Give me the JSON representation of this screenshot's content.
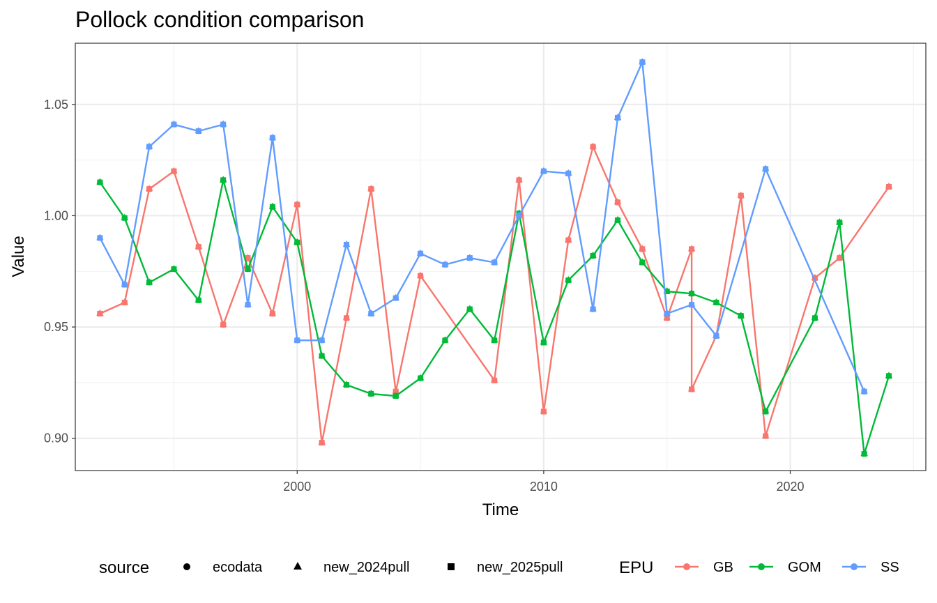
{
  "chart_data": {
    "type": "line",
    "title": "Pollock condition comparison",
    "xlabel": "Time",
    "ylabel": "Value",
    "xlim": [
      1991.0,
      2025.5
    ],
    "ylim": [
      0.8855,
      1.0775
    ],
    "x_ticks": [
      2000,
      2010,
      2020
    ],
    "y_ticks": [
      0.9,
      0.95,
      1.0,
      1.05
    ],
    "x_tick_labels": [
      "2000",
      "2010",
      "2020"
    ],
    "y_tick_labels": [
      "0.90",
      "0.95",
      "1.00",
      "1.05"
    ],
    "grid": true,
    "legend_position": "bottom",
    "shape_legend": {
      "title": "source",
      "items": [
        {
          "name": "ecodata",
          "shape": "circle"
        },
        {
          "name": "new_2024pull",
          "shape": "triangle"
        },
        {
          "name": "new_2025pull",
          "shape": "square"
        }
      ]
    },
    "series": [
      {
        "name": "GB",
        "color": "#F8766D",
        "points": [
          [
            1992,
            0.956
          ],
          [
            1993,
            0.961
          ],
          [
            1994,
            1.012
          ],
          [
            1995,
            1.02
          ],
          [
            1996,
            0.986
          ],
          [
            1997,
            0.951
          ],
          [
            1998,
            0.981
          ],
          [
            1999,
            0.956
          ],
          [
            2000,
            1.005
          ],
          [
            2001,
            0.898
          ],
          [
            2002,
            0.954
          ],
          [
            2003,
            1.012
          ],
          [
            2004,
            0.921
          ],
          [
            2005,
            0.973
          ],
          [
            2008,
            0.926
          ],
          [
            2009,
            1.016
          ],
          [
            2010,
            0.912
          ],
          [
            2011,
            0.989
          ],
          [
            2012,
            1.031
          ],
          [
            2013,
            1.006
          ],
          [
            2014,
            0.985
          ],
          [
            2015,
            0.954
          ],
          [
            2016,
            0.985
          ],
          [
            2016,
            0.922
          ],
          [
            2017,
            0.946
          ],
          [
            2018,
            1.009
          ],
          [
            2019,
            0.901
          ],
          [
            2021,
            0.972
          ],
          [
            2022,
            0.981
          ],
          [
            2024,
            1.013
          ]
        ]
      },
      {
        "name": "GOM",
        "color": "#00BA38",
        "points": [
          [
            1992,
            1.015
          ],
          [
            1993,
            0.999
          ],
          [
            1994,
            0.97
          ],
          [
            1995,
            0.976
          ],
          [
            1996,
            0.962
          ],
          [
            1997,
            1.016
          ],
          [
            1998,
            0.976
          ],
          [
            1999,
            1.004
          ],
          [
            2000,
            0.988
          ],
          [
            2001,
            0.937
          ],
          [
            2002,
            0.924
          ],
          [
            2003,
            0.92
          ],
          [
            2004,
            0.919
          ],
          [
            2005,
            0.927
          ],
          [
            2006,
            0.944
          ],
          [
            2007,
            0.958
          ],
          [
            2008,
            0.944
          ],
          [
            2009,
            1.001
          ],
          [
            2010,
            0.943
          ],
          [
            2011,
            0.971
          ],
          [
            2012,
            0.982
          ],
          [
            2013,
            0.998
          ],
          [
            2014,
            0.979
          ],
          [
            2015,
            0.966
          ],
          [
            2016,
            0.965
          ],
          [
            2017,
            0.961
          ],
          [
            2018,
            0.955
          ],
          [
            2019,
            0.912
          ],
          [
            2021,
            0.954
          ],
          [
            2022,
            0.997
          ],
          [
            2023,
            0.893
          ],
          [
            2024,
            0.928
          ]
        ]
      },
      {
        "name": "SS",
        "color": "#619CFF",
        "points": [
          [
            1992,
            0.99
          ],
          [
            1993,
            0.969
          ],
          [
            1994,
            1.031
          ],
          [
            1995,
            1.041
          ],
          [
            1996,
            1.038
          ],
          [
            1997,
            1.041
          ],
          [
            1998,
            0.96
          ],
          [
            1999,
            1.035
          ],
          [
            2000,
            0.944
          ],
          [
            2001,
            0.944
          ],
          [
            2002,
            0.987
          ],
          [
            2003,
            0.956
          ],
          [
            2004,
            0.963
          ],
          [
            2005,
            0.983
          ],
          [
            2006,
            0.978
          ],
          [
            2007,
            0.981
          ],
          [
            2008,
            0.979
          ],
          [
            2009,
            1.0
          ],
          [
            2010,
            1.02
          ],
          [
            2011,
            1.019
          ],
          [
            2012,
            0.958
          ],
          [
            2013,
            1.044
          ],
          [
            2014,
            1.069
          ],
          [
            2015,
            0.956
          ],
          [
            2016,
            0.96
          ],
          [
            2017,
            0.946
          ],
          [
            2019,
            1.021
          ],
          [
            2023,
            0.921
          ]
        ]
      }
    ]
  }
}
